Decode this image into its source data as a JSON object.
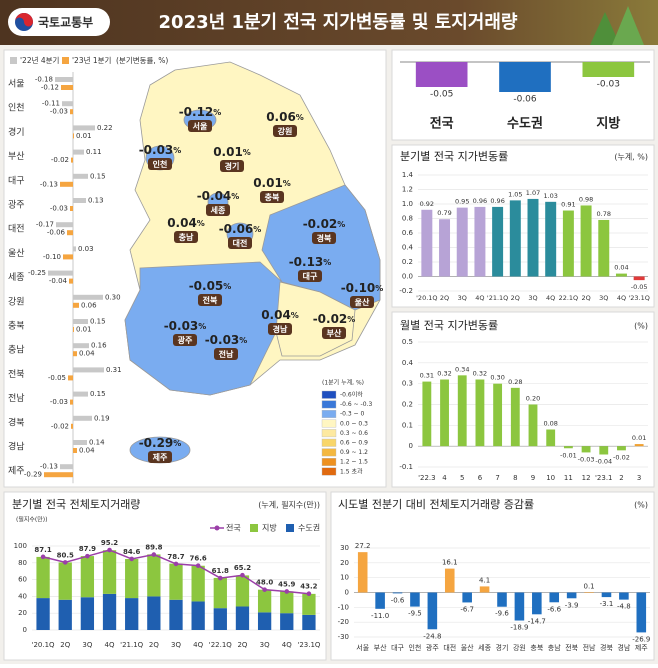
{
  "header": {
    "logo": "국토교통부",
    "title": "2023년 1분기 전국 지가변동률 및 토지거래량"
  },
  "map": {
    "unit": "%",
    "regions": [
      {
        "name": "서울",
        "value": "-0.12"
      },
      {
        "name": "강원",
        "value": "0.06"
      },
      {
        "name": "인천",
        "value": "-0.03"
      },
      {
        "name": "경기",
        "value": "0.01"
      },
      {
        "name": "충북",
        "value": "0.01"
      },
      {
        "name": "세종",
        "value": "-0.04"
      },
      {
        "name": "충남",
        "value": "0.04"
      },
      {
        "name": "대전",
        "value": "-0.06"
      },
      {
        "name": "경북",
        "value": "-0.02"
      },
      {
        "name": "대구",
        "value": "-0.13"
      },
      {
        "name": "울산",
        "value": "-0.10"
      },
      {
        "name": "전북",
        "value": "-0.05"
      },
      {
        "name": "경남",
        "value": "0.04"
      },
      {
        "name": "부산",
        "value": "-0.02"
      },
      {
        "name": "광주",
        "value": "-0.03"
      },
      {
        "name": "전남",
        "value": "-0.03"
      },
      {
        "name": "제주",
        "value": "-0.29"
      }
    ],
    "legend": {
      "title": "(1분기 누계, %)",
      "items": [
        {
          "label": "-0.6이하",
          "color": "#1f4fbf"
        },
        {
          "label": "-0.6 ~ -0.3",
          "color": "#3a78d8"
        },
        {
          "label": "-0.3 ~ 0",
          "color": "#7aacf0"
        },
        {
          "label": "0.0 ~ 0.3",
          "color": "#fff6c2"
        },
        {
          "label": "0.3 ~ 0.6",
          "color": "#fde9a0"
        },
        {
          "label": "0.6 ~ 0.9",
          "color": "#f8d66a"
        },
        {
          "label": "0.9 ~ 1.2",
          "color": "#f4b840"
        },
        {
          "label": "1.2 ~ 1.5",
          "color": "#ee9120"
        },
        {
          "label": "1.5 초과",
          "color": "#e06a10"
        }
      ]
    }
  },
  "chart_data": [
    {
      "type": "bar",
      "orientation": "horizontal",
      "legend_note": "(분기변동률, %)",
      "categories": [
        "서울",
        "인천",
        "경기",
        "부산",
        "대구",
        "광주",
        "대전",
        "울산",
        "세종",
        "강원",
        "충북",
        "충남",
        "전북",
        "전남",
        "경북",
        "경남",
        "제주"
      ],
      "series": [
        {
          "name": "'22년 4분기",
          "color": "#c8c8c8",
          "values": [
            -0.18,
            -0.11,
            0.22,
            0.11,
            0.15,
            0.13,
            -0.17,
            0.03,
            -0.25,
            0.3,
            0.15,
            0.16,
            0.31,
            0.15,
            0.19,
            0.14,
            -0.13
          ],
          "value_labels": [
            "-0.18",
            "-0.11",
            "0.22",
            "0.11",
            "0.15",
            "0.13",
            "-0.17",
            "0.03",
            "-0.25",
            "0.30",
            "0.15",
            "0.16",
            "0.31",
            "0.15",
            "0.19",
            "0.14",
            "-0.13"
          ]
        },
        {
          "name": "'23년 1분기",
          "color": "#f5a540",
          "values": [
            -0.12,
            -0.03,
            0.01,
            -0.02,
            -0.13,
            -0.03,
            -0.06,
            -0.1,
            -0.04,
            0.06,
            0.01,
            0.04,
            -0.05,
            -0.03,
            -0.02,
            0.04,
            -0.29
          ],
          "value_labels": [
            "-0.12",
            "-0.03",
            "0.01",
            "-0.02",
            "-0.13",
            "-0.03",
            "-0.06",
            "-0.10",
            "-0.04",
            "0.06",
            "0.01",
            "0.04",
            "-0.05",
            "-0.03",
            "-0.02",
            "0.04",
            "-0.29"
          ]
        }
      ]
    },
    {
      "type": "bar",
      "categories": [
        "전국",
        "수도권",
        "지방"
      ],
      "values": [
        -0.05,
        -0.06,
        -0.03
      ],
      "colors": [
        "#9b4fc4",
        "#1f6fc0",
        "#8cc63f"
      ]
    },
    {
      "type": "bar",
      "title": "분기별 전국 지가변동률",
      "unit": "(누계, %)",
      "categories": [
        "'20.1Q",
        "2Q",
        "3Q",
        "4Q",
        "'21.1Q",
        "2Q",
        "3Q",
        "4Q",
        "22.1Q",
        "2Q",
        "3Q",
        "4Q",
        "'23.1Q"
      ],
      "values": [
        0.92,
        0.79,
        0.95,
        0.96,
        0.96,
        1.05,
        1.07,
        1.03,
        0.91,
        0.98,
        0.78,
        0.04,
        -0.05
      ],
      "colors": [
        "#b7a3d6",
        "#b7a3d6",
        "#b7a3d6",
        "#b7a3d6",
        "#2b8c9c",
        "#2b8c9c",
        "#2b8c9c",
        "#2b8c9c",
        "#8cc63f",
        "#8cc63f",
        "#8cc63f",
        "#8cc63f",
        "#e03a3a"
      ],
      "ylim": [
        -0.2,
        1.4
      ],
      "yticks": [
        -0.2,
        {
          "value": 0,
          "label": "0.0"
        },
        0.2,
        0.4,
        0.6,
        0.8,
        {
          "value": 1,
          "label": "1.0"
        },
        1.2,
        1.4
      ],
      "grid": true
    },
    {
      "type": "bar",
      "title": "월별 전국 지가변동률",
      "unit": "(%)",
      "categories": [
        "'22.3",
        "4",
        "5",
        "6",
        "7",
        "8",
        "9",
        "10",
        "11",
        "12",
        "'23.1",
        "2",
        "3"
      ],
      "values": [
        0.31,
        0.32,
        0.34,
        0.32,
        0.3,
        0.28,
        0.2,
        0.08,
        -0.01,
        -0.03,
        -0.04,
        -0.02,
        0.01
      ],
      "value_labels": [
        "0.31",
        "0.32",
        "0.34",
        "0.32",
        "0.30",
        "0.28",
        "0.20",
        "0.08",
        "-0.01",
        "-0.03",
        "-0.04",
        "-0.02",
        "0.01"
      ],
      "colors": [
        "#8cc63f",
        "#8cc63f",
        "#8cc63f",
        "#8cc63f",
        "#8cc63f",
        "#8cc63f",
        "#8cc63f",
        "#8cc63f",
        "#8cc63f",
        "#8cc63f",
        "#8cc63f",
        "#8cc63f",
        "#f0a030"
      ],
      "ylim": [
        -0.1,
        0.5
      ],
      "yticks": [
        -0.1,
        0,
        0.1,
        0.2,
        0.3,
        0.4,
        0.5
      ],
      "grid": true
    },
    {
      "type": "combo",
      "title": "분기별 전국 전체토지거래량",
      "unit": "(누계, 필지수(만))",
      "y_unit": "(필지수(만))",
      "categories": [
        "'20.1Q",
        "2Q",
        "3Q",
        "4Q",
        "'21.1Q",
        "2Q",
        "3Q",
        "4Q",
        "'22.1Q",
        "2Q",
        "3Q",
        "4Q",
        "'23.1Q"
      ],
      "series": [
        {
          "name": "전국",
          "type": "line",
          "color": "#9b3fa8",
          "values": [
            87.1,
            80.5,
            87.9,
            95.2,
            84.6,
            89.8,
            78.7,
            76.6,
            61.8,
            65.2,
            48.0,
            45.9,
            43.2
          ],
          "value_labels": [
            "87.1",
            "80.5",
            "87.9",
            "95.2",
            "84.6",
            "89.8",
            "78.7",
            "76.6",
            "61.8",
            "65.2",
            "48.0",
            "45.9",
            "43.2"
          ]
        },
        {
          "name": "지방",
          "type": "bar",
          "color": "#8cc63f",
          "values": [
            49,
            44.5,
            49,
            52,
            46.5,
            50,
            43,
            42.5,
            36,
            37,
            27,
            26,
            25
          ]
        },
        {
          "name": "수도권",
          "type": "bar",
          "color": "#1f5fb0",
          "values": [
            38,
            36,
            39,
            43,
            38,
            40,
            36,
            34,
            26,
            28,
            21,
            20,
            18
          ]
        }
      ],
      "ylim": [
        0,
        100
      ],
      "yticks": [
        0,
        20,
        40,
        60,
        80,
        100
      ],
      "grid": true
    },
    {
      "type": "bar",
      "title": "시도별 전분기 대비 전체토지거래량 증감률",
      "unit": "(%)",
      "categories": [
        "서울",
        "부산",
        "대구",
        "인천",
        "광주",
        "대전",
        "울산",
        "세종",
        "경기",
        "강원",
        "충북",
        "충남",
        "전북",
        "전남",
        "경북",
        "경남",
        "제주"
      ],
      "values": [
        27.2,
        -11.0,
        -0.6,
        -9.5,
        -24.8,
        16.1,
        -6.7,
        4.1,
        -9.6,
        -18.9,
        -14.7,
        -6.6,
        -3.9,
        0.1,
        -3.1,
        -4.8,
        -26.9
      ],
      "value_labels": [
        "27.2",
        "-11.0",
        "-0.6",
        "-9.5",
        "-24.8",
        "16.1",
        "-6.7",
        "4.1",
        "-9.6",
        "-18.9",
        "-14.7",
        "-6.6",
        "-3.9",
        "0.1",
        "-3.1",
        "-4.8",
        "-26.9"
      ],
      "positive_color": "#f5a540",
      "negative_color": "#1f6fc0",
      "ylim": [
        -30,
        30
      ],
      "yticks": [
        -30,
        -20,
        -10,
        0,
        10,
        20,
        30
      ],
      "grid": true
    }
  ]
}
